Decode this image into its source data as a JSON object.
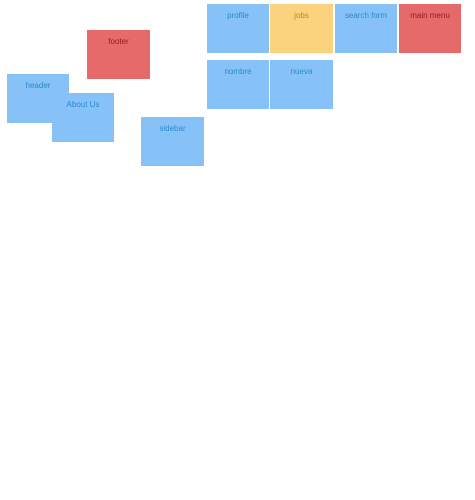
{
  "tiles": {
    "profile": {
      "label": "profile",
      "color": "blue"
    },
    "jobs": {
      "label": "jobs",
      "color": "yellow"
    },
    "search_form": {
      "label": "search form",
      "color": "blue"
    },
    "main_menu": {
      "label": "main menu",
      "color": "red"
    },
    "nombre": {
      "label": "nombre",
      "color": "blue"
    },
    "nueva": {
      "label": "nueva",
      "color": "blue"
    },
    "footer": {
      "label": "footer",
      "color": "red"
    },
    "header": {
      "label": "header",
      "color": "blue"
    },
    "about_us": {
      "label": "About Us",
      "color": "blue"
    },
    "sidebar": {
      "label": "sidebar",
      "color": "blue"
    }
  },
  "colors": {
    "blue": "#86c1f8",
    "red": "#e66a6a",
    "yellow": "#fbd37f"
  }
}
